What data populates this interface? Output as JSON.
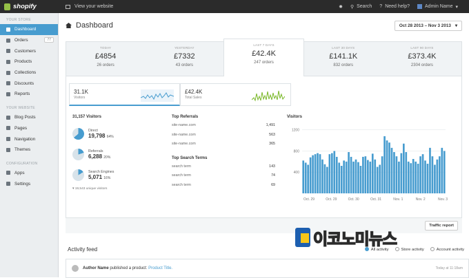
{
  "topbar": {
    "logo": "shopify",
    "view_site": "View your website",
    "search": "Search",
    "help": "Need help?",
    "admin": "Admin Name"
  },
  "sidebar": {
    "store_heading": "YOUR STORE",
    "store_items": [
      {
        "label": "Dashboard",
        "icon": "home-icon",
        "active": true
      },
      {
        "label": "Orders",
        "icon": "orders-icon",
        "badge": "77"
      },
      {
        "label": "Customers",
        "icon": "customers-icon"
      },
      {
        "label": "Products",
        "icon": "products-icon"
      },
      {
        "label": "Collections",
        "icon": "collections-icon"
      },
      {
        "label": "Discounts",
        "icon": "discounts-icon"
      },
      {
        "label": "Reports",
        "icon": "reports-icon"
      }
    ],
    "website_heading": "YOUR WEBSITE",
    "website_items": [
      {
        "label": "Blog Posts",
        "icon": "blog-icon"
      },
      {
        "label": "Pages",
        "icon": "pages-icon"
      },
      {
        "label": "Navigation",
        "icon": "navigation-icon"
      },
      {
        "label": "Themes",
        "icon": "themes-icon"
      }
    ],
    "config_heading": "CONFIGURATION",
    "config_items": [
      {
        "label": "Apps",
        "icon": "apps-icon"
      },
      {
        "label": "Settings",
        "icon": "settings-icon"
      }
    ]
  },
  "header": {
    "title": "Dashboard",
    "date_range": "Oct 28 2013 – Nov 3 2013"
  },
  "summary": [
    {
      "label": "TODAY",
      "amount": "£4854",
      "orders": "26 orders"
    },
    {
      "label": "YESTERDAY",
      "amount": "£7332",
      "orders": "43 orders"
    },
    {
      "label": "LAST 7 DAYS",
      "amount": "£42.4K",
      "orders": "247 orders",
      "selected": true
    },
    {
      "label": "LAST 30 DAYS",
      "amount": "£141.1K",
      "orders": "832 orders"
    },
    {
      "label": "LAST 90 DAYS",
      "amount": "£373.4K",
      "orders": "2304 orders"
    }
  ],
  "tabs": [
    {
      "value": "31.1K",
      "label": "Visitors"
    },
    {
      "value": "£42.4K",
      "label": "Total Sales"
    }
  ],
  "visitors": {
    "heading": "31,157 Visitors",
    "rows": [
      {
        "name": "Direct",
        "value": "19,798",
        "pct": "64%",
        "fraction": 0.64
      },
      {
        "name": "Referrals",
        "value": "6,288",
        "pct": "20%",
        "fraction": 0.2
      },
      {
        "name": "Search Engines",
        "value": "5,071",
        "pct": "16%",
        "fraction": 0.16
      }
    ],
    "unique": "19,543 unique visitors"
  },
  "referrals": {
    "heading": "Top Referrals",
    "rows": [
      {
        "site": "site-name.com",
        "count": "1,491"
      },
      {
        "site": "site-name.com",
        "count": "563"
      },
      {
        "site": "site-name.com",
        "count": "365"
      }
    ]
  },
  "search_terms": {
    "heading": "Top Search Terms",
    "rows": [
      {
        "term": "search term",
        "count": "143"
      },
      {
        "term": "search term",
        "count": "74"
      },
      {
        "term": "search term",
        "count": "69"
      }
    ]
  },
  "chart_data": {
    "type": "bar",
    "title": "Visitors",
    "ylim": [
      0,
      1300
    ],
    "yticks": [
      "1200",
      "800",
      "400"
    ],
    "xticks": [
      "Oct. 29",
      "Oct. 29",
      "Oct. 30",
      "Oct. 31",
      "Nov. 1",
      "Nov. 2",
      "Nov. 3"
    ],
    "values": [
      620,
      580,
      540,
      680,
      720,
      740,
      760,
      740,
      640,
      550,
      500,
      740,
      760,
      800,
      690,
      580,
      520,
      620,
      600,
      780,
      690,
      600,
      640,
      590,
      520,
      690,
      700,
      630,
      600,
      750,
      640,
      500,
      540,
      700,
      1080,
      1000,
      960,
      860,
      780,
      700,
      600,
      760,
      940,
      780,
      600,
      570,
      650,
      600,
      560,
      700,
      740,
      620,
      560,
      860,
      700,
      540,
      640,
      700,
      860,
      800
    ],
    "color": "#479ccf"
  },
  "traffic_button": "Traffic report",
  "activity": {
    "heading": "Activity feed",
    "filters": [
      {
        "label": "All activity",
        "on": true
      },
      {
        "label": "Store activity",
        "on": false
      },
      {
        "label": "Account activity",
        "on": false
      }
    ],
    "item": {
      "author": "Author Name",
      "action": "published a product:",
      "product": "Product Title.",
      "time": "Today at 11:18am"
    }
  },
  "watermark": "이코노미뉴스"
}
